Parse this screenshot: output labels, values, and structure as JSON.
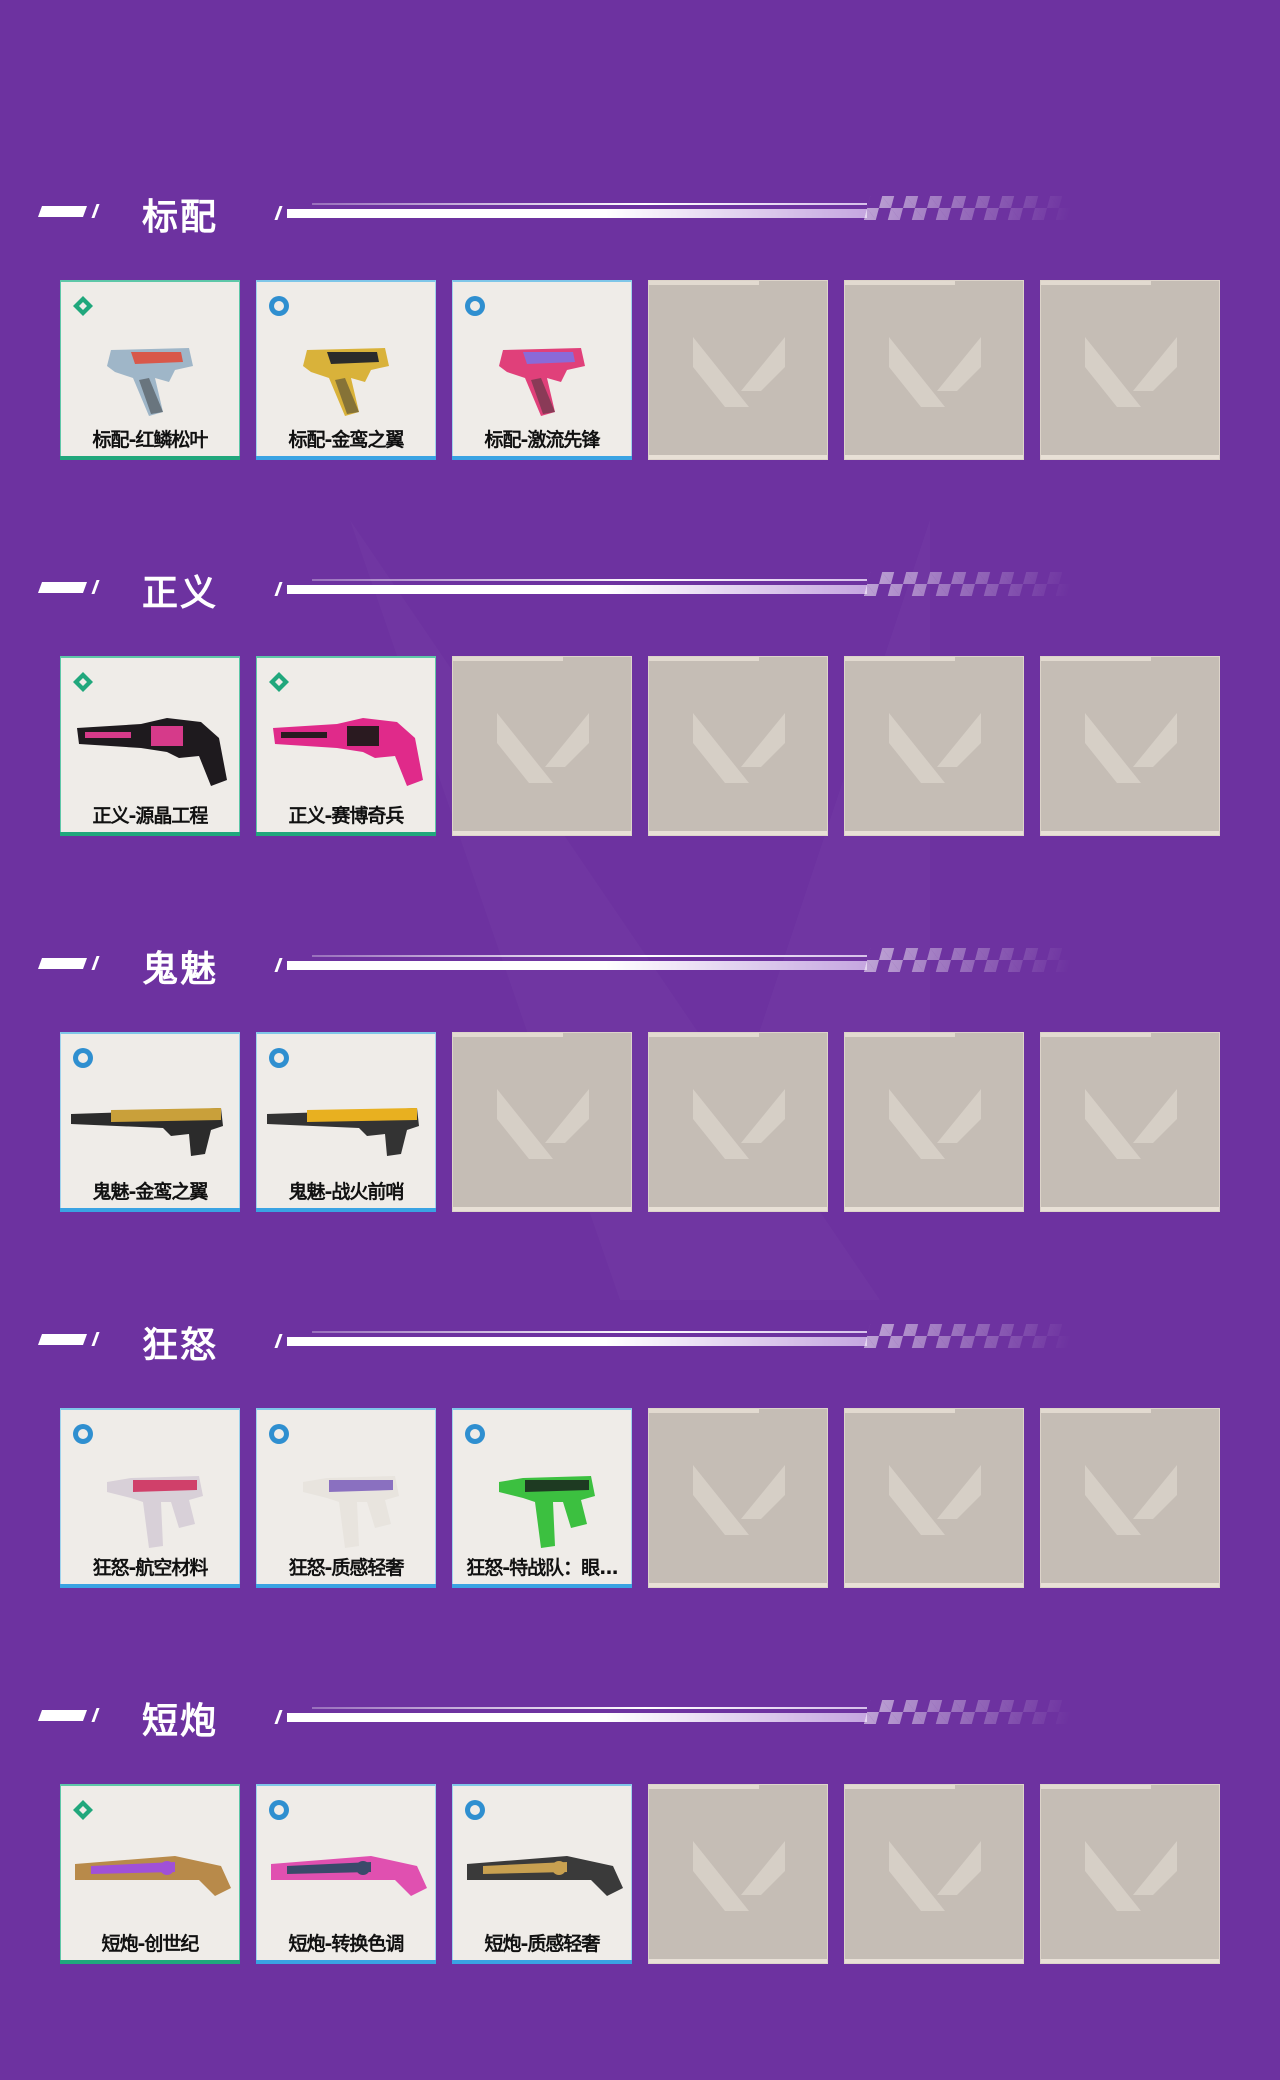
{
  "colors": {
    "background": "#6d32a0",
    "select_tier": "#20a77c",
    "deluxe_tier": "#3aa3e3",
    "empty_slot": "#c5bdb5"
  },
  "slots_per_row": 6,
  "sections": [
    {
      "title": "标配",
      "weapon": "pistol",
      "items": [
        {
          "name": "标配-红鳞松叶",
          "tier": "select",
          "icon": "select-tier-icon",
          "c1": "#9fb6c8",
          "c2": "#d8584a"
        },
        {
          "name": "标配-金鸾之翼",
          "tier": "deluxe",
          "icon": "deluxe-tier-icon",
          "c1": "#d9b23a",
          "c2": "#2b2b2b"
        },
        {
          "name": "标配-激流先锋",
          "tier": "deluxe",
          "icon": "deluxe-tier-icon",
          "c1": "#e0407a",
          "c2": "#8a6ad8"
        }
      ]
    },
    {
      "title": "正义",
      "weapon": "revolver",
      "items": [
        {
          "name": "正义-源晶工程",
          "tier": "select",
          "icon": "select-tier-icon",
          "c1": "#1e1a1e",
          "c2": "#d63a8a"
        },
        {
          "name": "正义-赛博奇兵",
          "tier": "select",
          "icon": "select-tier-icon",
          "c1": "#e02a8a",
          "c2": "#2a1a20"
        }
      ]
    },
    {
      "title": "鬼魅",
      "weapon": "silenced",
      "items": [
        {
          "name": "鬼魅-金鸾之翼",
          "tier": "deluxe",
          "icon": "deluxe-tier-icon",
          "c1": "#c9a03a",
          "c2": "#2b2b2b"
        },
        {
          "name": "鬼魅-战火前哨",
          "tier": "deluxe",
          "icon": "deluxe-tier-icon",
          "c1": "#e8b020",
          "c2": "#333333"
        }
      ]
    },
    {
      "title": "狂怒",
      "weapon": "frenzy",
      "items": [
        {
          "name": "狂怒-航空材料",
          "tier": "deluxe",
          "icon": "deluxe-tier-icon",
          "c1": "#d8d0d8",
          "c2": "#d0406a"
        },
        {
          "name": "狂怒-质感轻奢",
          "tier": "deluxe",
          "icon": "deluxe-tier-icon",
          "c1": "#e8e4de",
          "c2": "#8a70c0"
        },
        {
          "name": "狂怒-特战队：眼...",
          "tier": "deluxe",
          "icon": "deluxe-tier-icon",
          "c1": "#3cc040",
          "c2": "#1e3a22"
        }
      ]
    },
    {
      "title": "短炮",
      "weapon": "shorty",
      "items": [
        {
          "name": "短炮-创世纪",
          "tier": "select",
          "icon": "select-tier-icon",
          "c1": "#b88a4a",
          "c2": "#a050d8"
        },
        {
          "name": "短炮-转换色调",
          "tier": "deluxe",
          "icon": "deluxe-tier-icon",
          "c1": "#e050b0",
          "c2": "#3a4a6a"
        },
        {
          "name": "短炮-质感轻奢",
          "tier": "deluxe",
          "icon": "deluxe-tier-icon",
          "c1": "#3a3a3a",
          "c2": "#c8a050"
        }
      ]
    }
  ]
}
